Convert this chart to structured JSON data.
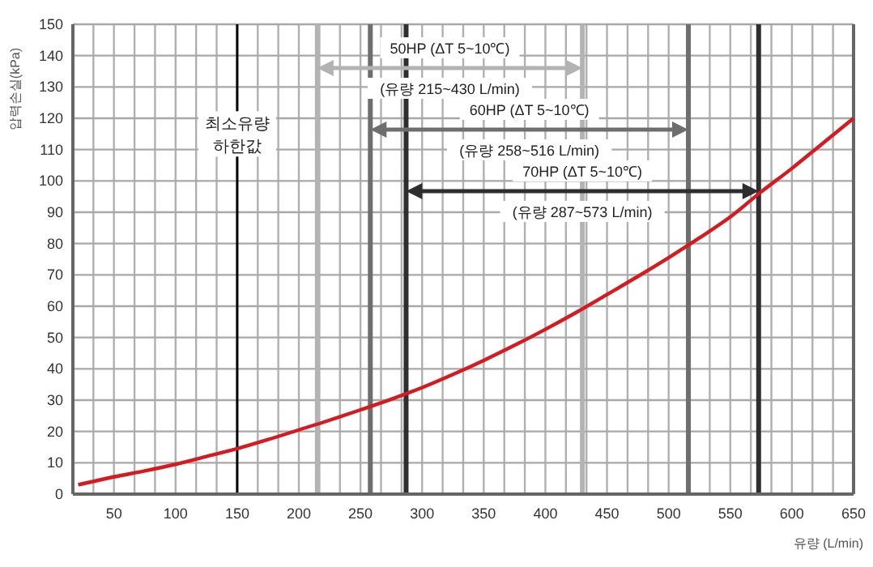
{
  "chart_data": {
    "type": "line",
    "xlabel": "유량 (L/min)",
    "ylabel": "압력손실(kPa)",
    "xlim": [
      16.7,
      650
    ],
    "xticks": [
      50,
      100,
      150,
      200,
      250,
      300,
      350,
      400,
      450,
      500,
      550,
      600,
      650
    ],
    "ylim": [
      0,
      150
    ],
    "yticks": [
      0,
      10,
      20,
      30,
      40,
      50,
      60,
      70,
      80,
      90,
      100,
      110,
      120,
      130,
      140,
      150
    ],
    "grid": true,
    "marker": "none",
    "line_style": "solid",
    "series": [
      {
        "color": "#d71920",
        "x": [
          21,
          50,
          75,
          100,
          125,
          150,
          175,
          200,
          225,
          250,
          275,
          300,
          325,
          350,
          375,
          400,
          425,
          450,
          475,
          500,
          525,
          550,
          575,
          600,
          625,
          650
        ],
        "values": [
          3,
          5.5,
          7.4,
          9.5,
          12,
          14.5,
          17.4,
          20.5,
          23.6,
          26.9,
          30.3,
          34,
          38.2,
          42.7,
          47.5,
          52.6,
          58,
          63.7,
          69.5,
          75.5,
          81.8,
          88.5,
          96.5,
          104,
          112,
          120
        ]
      }
    ],
    "ref_lines": [
      {
        "axis": "x",
        "value": 150,
        "color": "#000000"
      },
      {
        "axis": "x",
        "value": 215,
        "color": "#b3b3b3"
      },
      {
        "axis": "x",
        "value": 430,
        "color": "#b3b3b3"
      },
      {
        "axis": "x",
        "value": 258,
        "color": "#6e6e6e"
      },
      {
        "axis": "x",
        "value": 516,
        "color": "#6e6e6e"
      },
      {
        "axis": "x",
        "value": 287,
        "color": "#2e2e2e"
      },
      {
        "axis": "x",
        "value": 573,
        "color": "#2e2e2e"
      }
    ],
    "annotations": [
      {
        "text": "최소유량\n하한값",
        "x": 150,
        "y": 115
      },
      "50HP (ΔT 5~10℃)",
      "(유량 215~430 L/min)",
      "60HP (ΔT 5~10℃)",
      "(유량 258~516 L/min)",
      "70HP (ΔT 5~10℃)",
      "(유량 287~573 L/min)"
    ]
  }
}
